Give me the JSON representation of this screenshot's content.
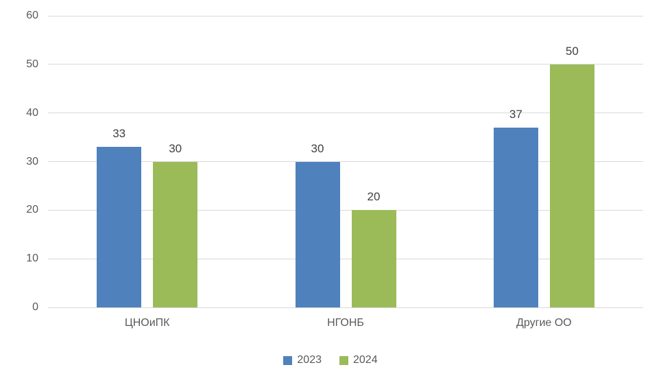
{
  "chart_data": {
    "type": "bar",
    "title": "",
    "xlabel": "",
    "ylabel": "",
    "categories": [
      "ЦНОиПК",
      "НГОНБ",
      "Другие ОО"
    ],
    "series": [
      {
        "name": "2023",
        "color": "#4f81bd",
        "values": [
          33,
          30,
          37
        ]
      },
      {
        "name": "2024",
        "color": "#9bbb59",
        "values": [
          30,
          20,
          50
        ]
      }
    ],
    "ylim": [
      0,
      60
    ],
    "ytick_step": 10,
    "ytick_labels": [
      "0",
      "10",
      "20",
      "30",
      "40",
      "50",
      "60"
    ],
    "grid": true,
    "legend_position": "bottom",
    "data_labels_shown": true,
    "colors": {
      "gridline": "#d9d9d9",
      "axis_text": "#595959",
      "data_label_text": "#404040",
      "background": "#ffffff"
    }
  }
}
